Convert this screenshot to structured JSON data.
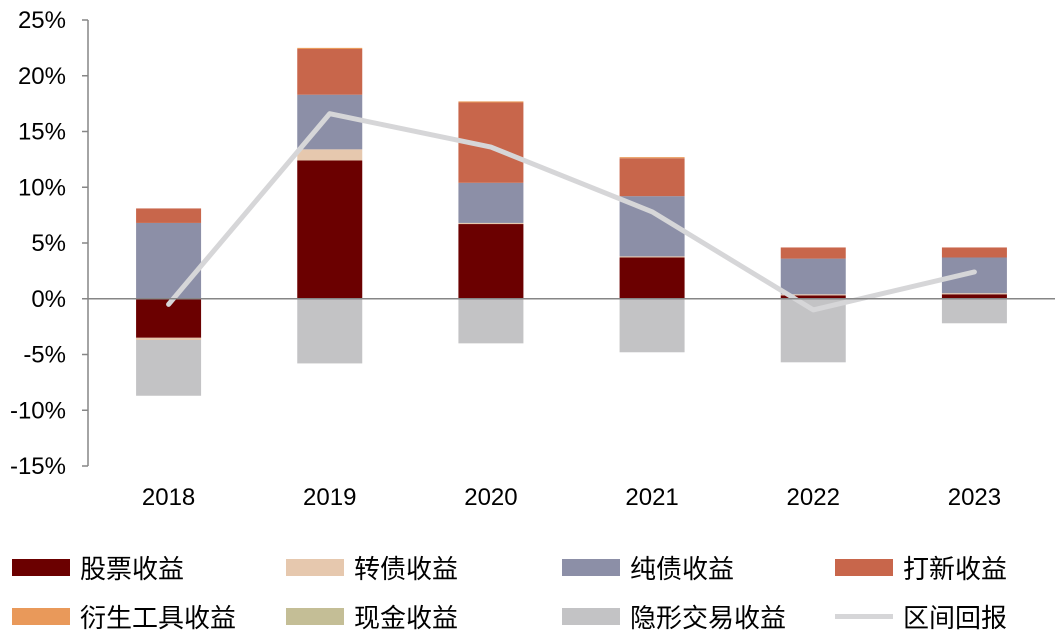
{
  "chart_data": {
    "type": "bar",
    "stacked": true,
    "categories": [
      "2018",
      "2019",
      "2020",
      "2021",
      "2022",
      "2023"
    ],
    "ylim": [
      -15,
      25
    ],
    "yticks": [
      "25%",
      "20%",
      "15%",
      "10%",
      "5%",
      "0%",
      "-5%",
      "-10%",
      "-15%"
    ],
    "ytick_values": [
      25,
      20,
      15,
      10,
      5,
      0,
      -5,
      -10,
      -15
    ],
    "series": [
      {
        "name": "股票收益",
        "color": "#6B0000",
        "values": [
          -3.5,
          12.4,
          6.7,
          3.7,
          0.3,
          0.4
        ]
      },
      {
        "name": "转债收益",
        "color": "#E6C8AE",
        "values": [
          -0.2,
          1.0,
          0.1,
          0.1,
          0.1,
          0.1
        ]
      },
      {
        "name": "纯债收益",
        "color": "#8C8FA7",
        "values": [
          6.8,
          4.9,
          3.6,
          5.4,
          3.2,
          3.2
        ]
      },
      {
        "name": "打新收益",
        "color": "#C8664B",
        "values": [
          1.3,
          4.1,
          7.2,
          3.4,
          1.0,
          0.9
        ]
      },
      {
        "name": "衍生工具收益",
        "color": "#E9995A",
        "values": [
          0,
          0.1,
          0.1,
          0.1,
          0,
          0
        ]
      },
      {
        "name": "现金收益",
        "color": "#C4BE96",
        "values": [
          0,
          0,
          0,
          0,
          0,
          0
        ]
      },
      {
        "name": "隐形交易收益",
        "color": "#C3C3C5",
        "values": [
          -5.0,
          -5.8,
          -4.0,
          -4.8,
          -5.7,
          -2.2
        ]
      }
    ],
    "line": {
      "name": "区间回报",
      "color": "#D6D6D8",
      "values": [
        -0.5,
        16.6,
        13.6,
        7.8,
        -1.0,
        2.4
      ]
    },
    "grid": false,
    "legend_position": "bottom"
  }
}
